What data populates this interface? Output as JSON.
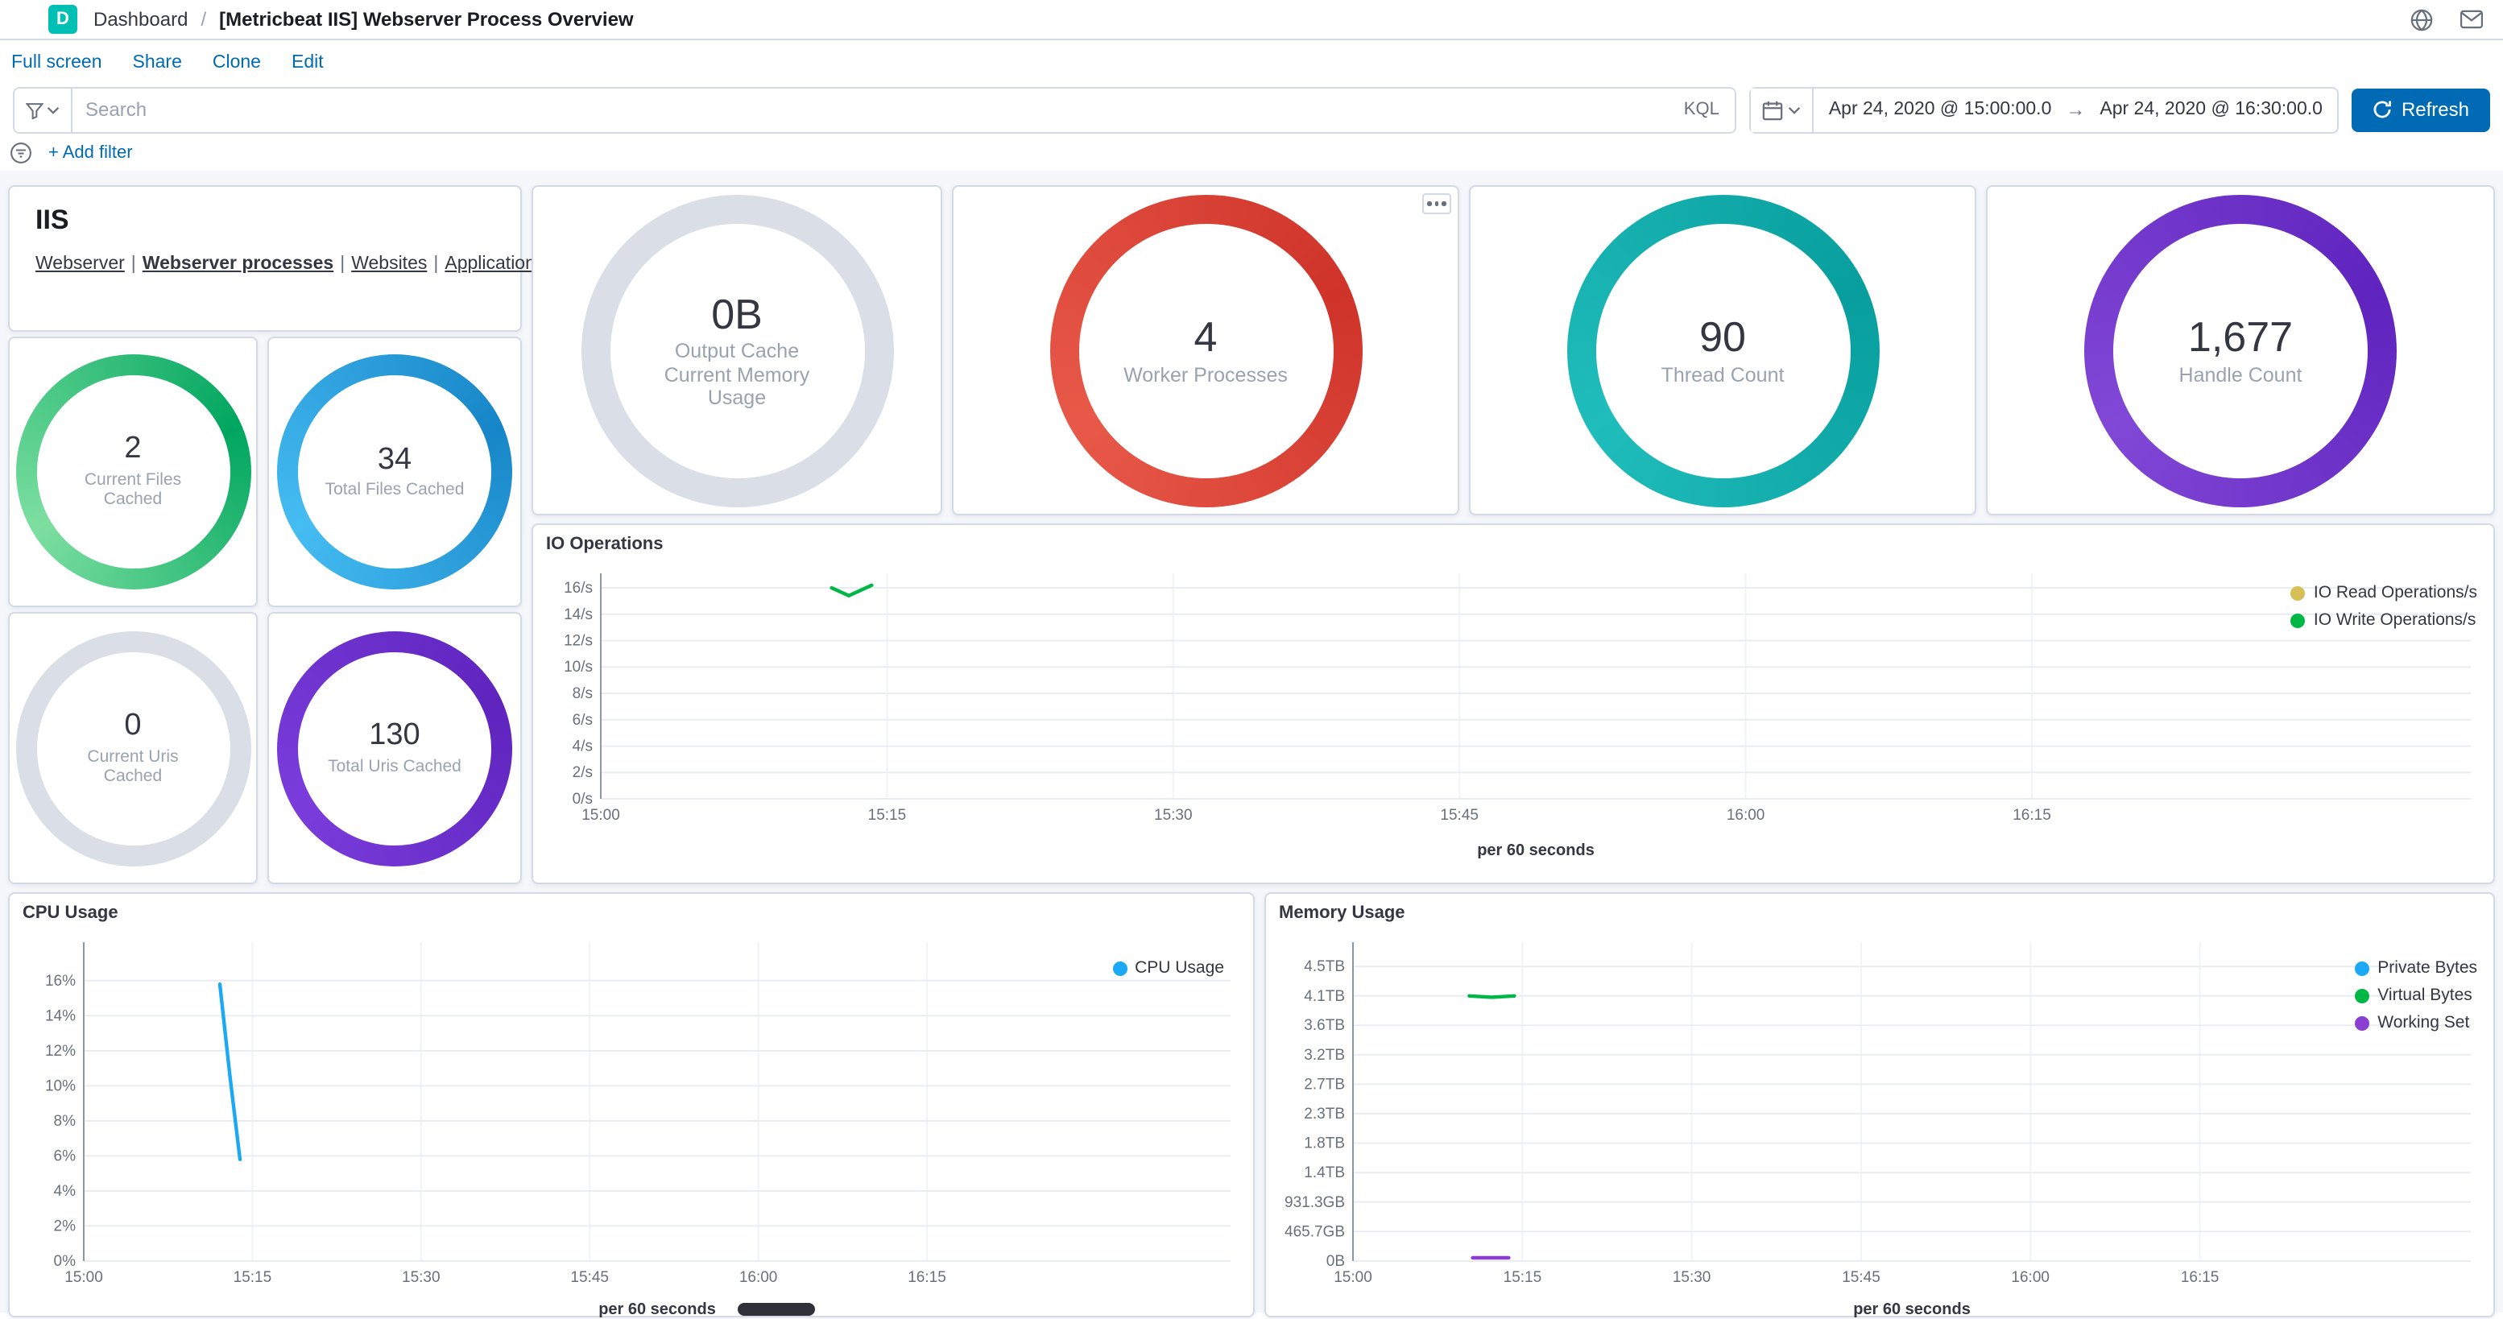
{
  "header": {
    "logo_letter": "D",
    "breadcrumb": "Dashboard",
    "separator": "/",
    "title": "[Metricbeat IIS] Webserver Process Overview"
  },
  "toolbar": {
    "links": [
      "Full screen",
      "Share",
      "Clone",
      "Edit"
    ]
  },
  "query_bar": {
    "search_placeholder": "Search",
    "kql_label": "KQL"
  },
  "time_picker": {
    "start": "Apr 24, 2020 @ 15:00:00.0",
    "arrow": "→",
    "end": "Apr 24, 2020 @ 16:30:00.0",
    "refresh_label": "Refresh",
    "refresh_color": "#006BB4"
  },
  "filter_bar": {
    "add_filter": "+ Add filter"
  },
  "icons": {
    "help": "globe",
    "newsfeed": "envelope",
    "saved-query": "funnel",
    "calendar": "calendar-grid",
    "refresh": "circular-arrow",
    "filter-options": "funnel-in-circle",
    "panel-options": "ellipsis-dots",
    "chevron-down": "▾"
  },
  "iis_panel": {
    "title": "IIS",
    "links": [
      "Webserver",
      "Webserver processes",
      "Websites",
      "Application Pools"
    ],
    "active_link": "Webserver processes",
    "separator": "|"
  },
  "small_gauges": [
    {
      "value": "2",
      "label": "Current Files Cached",
      "color": "#00A65F",
      "color2": "#7CDFA0"
    },
    {
      "value": "34",
      "label": "Total Files Cached",
      "color": "#1786C8",
      "color2": "#45BCF2"
    },
    {
      "value": "0",
      "label": "Current Uris Cached",
      "color": "#D9DEE7",
      "color2": "#D9DEE7"
    },
    {
      "value": "130",
      "label": "Total Uris Cached",
      "color": "#5F24BE",
      "color2": "#7A3DDC"
    }
  ],
  "large_gauges": [
    {
      "value": "0B",
      "label": "Output Cache Current Memory Usage",
      "color": "#D9DEE7",
      "color2": "#D9DEE7"
    },
    {
      "value": "4",
      "label": "Worker Processes",
      "color": "#CF332A",
      "color2": "#E85948"
    },
    {
      "value": "90",
      "label": "Thread Count",
      "color": "#089E9E",
      "color2": "#1FBDBB"
    },
    {
      "value": "1,677",
      "label": "Handle Count",
      "color": "#5F24BE",
      "color2": "#8147D6"
    }
  ],
  "chart_data": [
    {
      "type": "line",
      "title": "IO Operations",
      "xlabel": "per 60 seconds",
      "grid": true,
      "legend_position": "top-right",
      "x_domain": [
        0,
        98
      ],
      "x_ticks": [
        {
          "v": 0,
          "label": "15:00"
        },
        {
          "v": 15,
          "label": "15:15"
        },
        {
          "v": 30,
          "label": "15:30"
        },
        {
          "v": 45,
          "label": "15:45"
        },
        {
          "v": 60,
          "label": "16:00"
        },
        {
          "v": 75,
          "label": "16:15"
        }
      ],
      "y_domain": [
        0,
        17.1
      ],
      "y_ticks": [
        {
          "v": 0,
          "label": "0/s"
        },
        {
          "v": 2,
          "label": "2/s"
        },
        {
          "v": 4,
          "label": "4/s"
        },
        {
          "v": 6,
          "label": "6/s"
        },
        {
          "v": 8,
          "label": "8/s"
        },
        {
          "v": 10,
          "label": "10/s"
        },
        {
          "v": 12,
          "label": "12/s"
        },
        {
          "v": 14,
          "label": "14/s"
        },
        {
          "v": 16,
          "label": "16/s"
        }
      ],
      "series": [
        {
          "name": "IO Read Operations/s",
          "color": "#D6BF57",
          "points": []
        },
        {
          "name": "IO Write Operations/s",
          "color": "#00B746",
          "points": [
            [
              12.1,
              16.0
            ],
            [
              13.0,
              15.4
            ],
            [
              14.2,
              16.2
            ]
          ]
        }
      ]
    },
    {
      "type": "line",
      "title": "CPU Usage",
      "xlabel": "per 60 seconds",
      "grid": true,
      "legend_position": "top-right",
      "x_domain": [
        0,
        102
      ],
      "x_ticks": [
        {
          "v": 0,
          "label": "15:00"
        },
        {
          "v": 15,
          "label": "15:15"
        },
        {
          "v": 30,
          "label": "15:30"
        },
        {
          "v": 45,
          "label": "15:45"
        },
        {
          "v": 60,
          "label": "16:00"
        },
        {
          "v": 75,
          "label": "16:15"
        }
      ],
      "y_domain": [
        0,
        18.2
      ],
      "y_ticks": [
        {
          "v": 0,
          "label": "0%"
        },
        {
          "v": 2,
          "label": "2%"
        },
        {
          "v": 4,
          "label": "4%"
        },
        {
          "v": 6,
          "label": "6%"
        },
        {
          "v": 8,
          "label": "8%"
        },
        {
          "v": 10,
          "label": "10%"
        },
        {
          "v": 12,
          "label": "12%"
        },
        {
          "v": 14,
          "label": "14%"
        },
        {
          "v": 16,
          "label": "16%"
        }
      ],
      "series": [
        {
          "name": "CPU Usage",
          "color": "#1BA9F5",
          "points": [
            [
              12.1,
              15.8
            ],
            [
              13.0,
              10.6
            ],
            [
              13.9,
              5.8
            ]
          ]
        }
      ]
    },
    {
      "type": "line",
      "title": "Memory Usage",
      "xlabel": "per 60 seconds",
      "grid": true,
      "legend_position": "top-right",
      "x_domain": [
        0,
        99
      ],
      "x_ticks": [
        {
          "v": 0,
          "label": "15:00"
        },
        {
          "v": 15,
          "label": "15:15"
        },
        {
          "v": 30,
          "label": "15:30"
        },
        {
          "v": 45,
          "label": "15:45"
        },
        {
          "v": 60,
          "label": "16:00"
        },
        {
          "v": 75,
          "label": "16:15"
        }
      ],
      "y_domain": [
        0,
        5.04
      ],
      "y_ticks": [
        {
          "v": 0,
          "label": "0B"
        },
        {
          "v": 0.4657,
          "label": "465.7GB"
        },
        {
          "v": 0.9313,
          "label": "931.3GB"
        },
        {
          "v": 1.397,
          "label": "1.4TB"
        },
        {
          "v": 1.8626,
          "label": "1.8TB"
        },
        {
          "v": 2.3283,
          "label": "2.3TB"
        },
        {
          "v": 2.794,
          "label": "2.7TB"
        },
        {
          "v": 3.2596,
          "label": "3.2TB"
        },
        {
          "v": 3.7253,
          "label": "3.6TB"
        },
        {
          "v": 4.191,
          "label": "4.1TB"
        },
        {
          "v": 4.6566,
          "label": "4.5TB"
        }
      ],
      "series": [
        {
          "name": "Private Bytes",
          "color": "#1BA9F5",
          "points": []
        },
        {
          "name": "Virtual Bytes",
          "color": "#00B746",
          "points": [
            [
              10.3,
              4.19
            ],
            [
              12.3,
              4.17
            ],
            [
              14.3,
              4.19
            ]
          ]
        },
        {
          "name": "Working Set",
          "color": "#8A3FD1",
          "points": [
            [
              10.6,
              0.05
            ],
            [
              13.8,
              0.05
            ]
          ]
        }
      ]
    }
  ]
}
